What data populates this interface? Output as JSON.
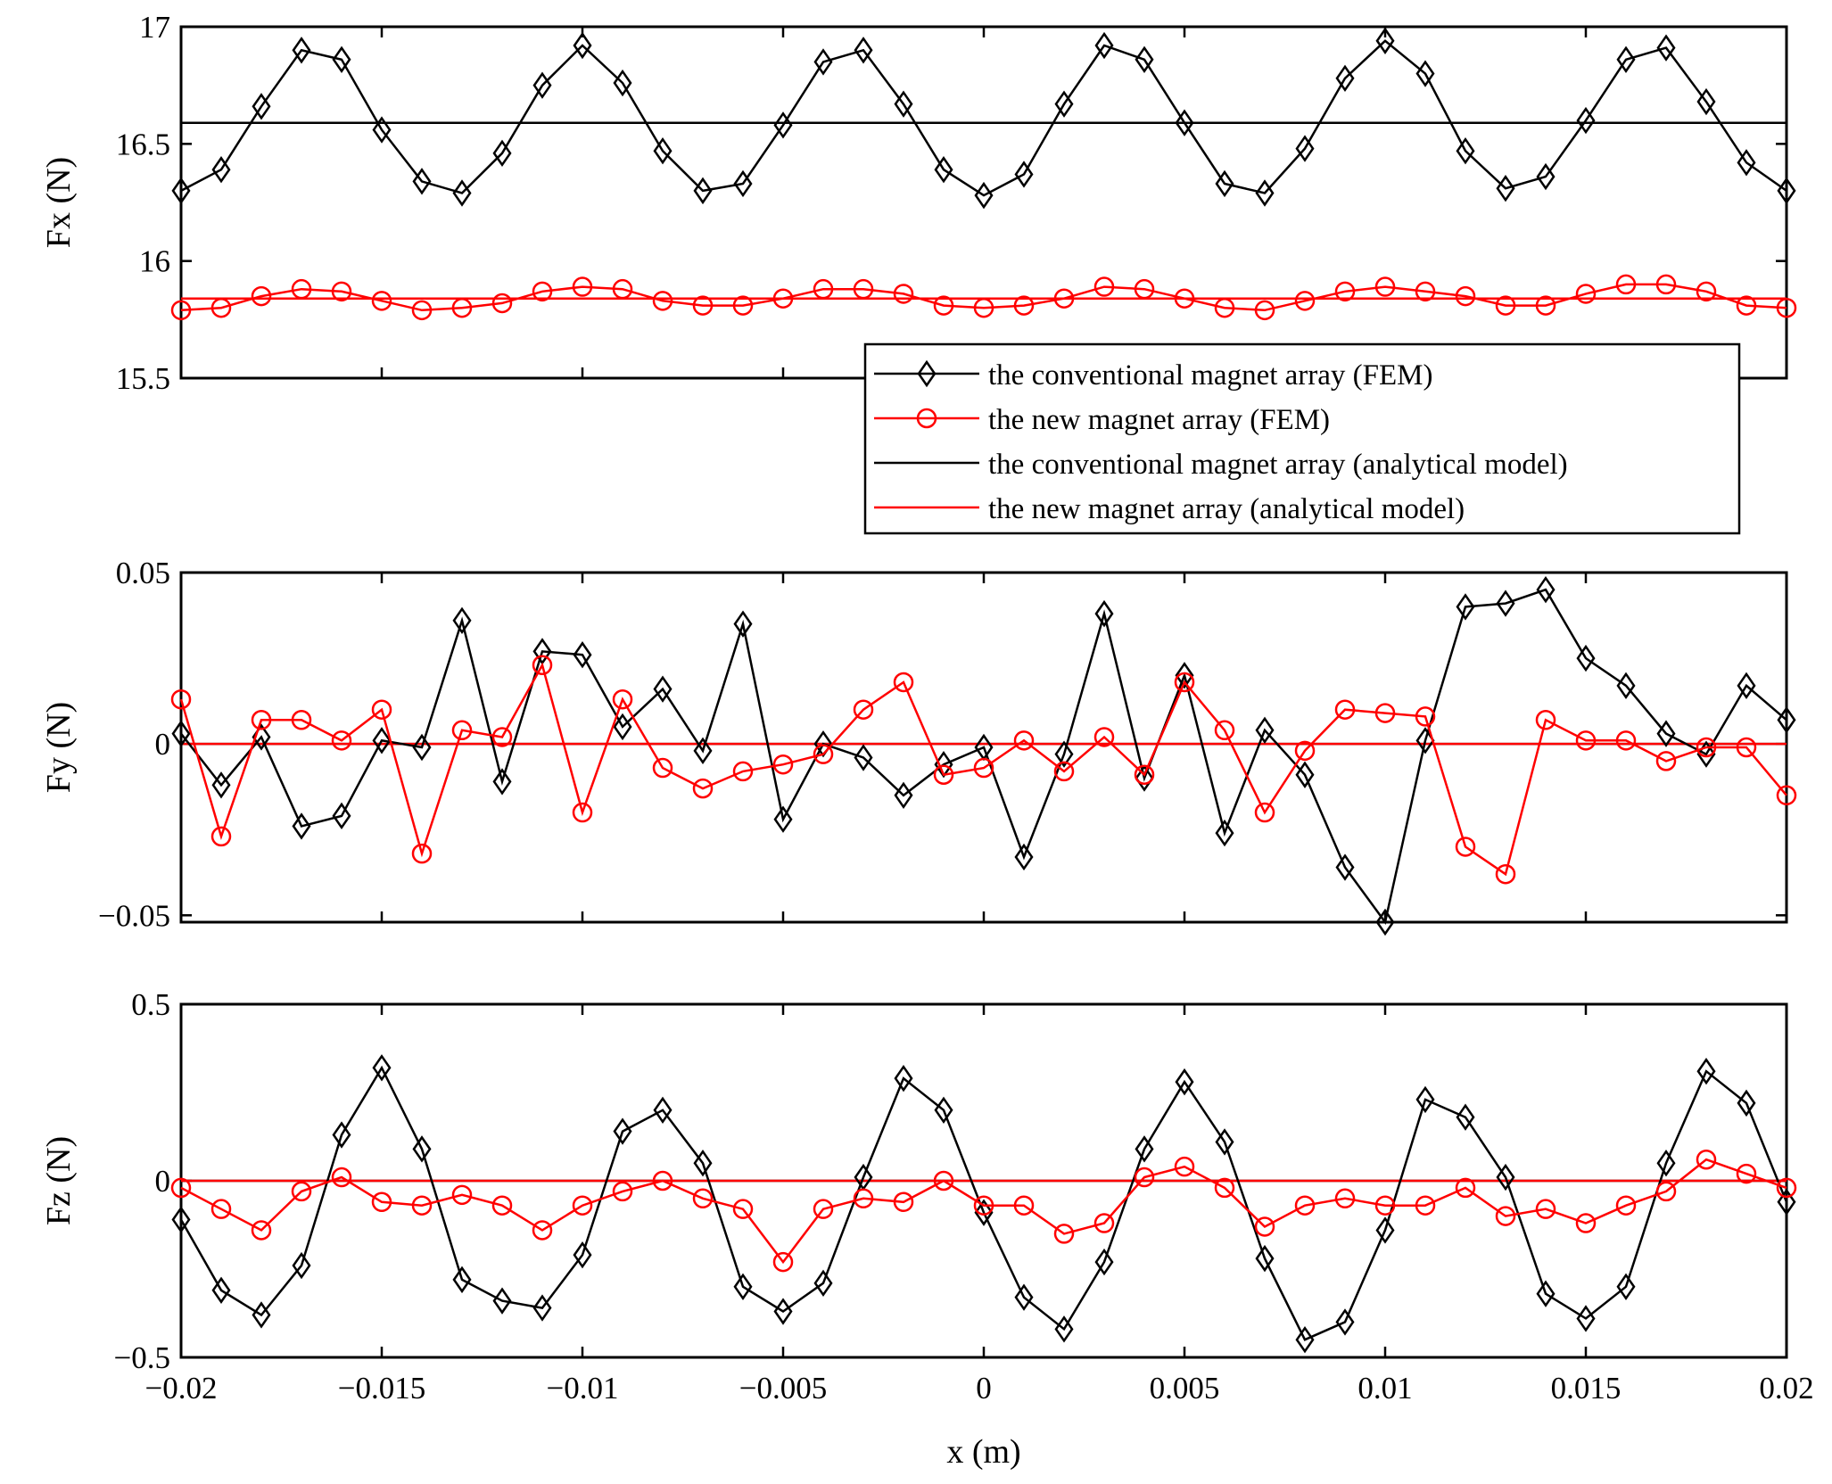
{
  "chart_data": [
    {
      "type": "line",
      "id": "fx",
      "ylabel": "Fx (N)",
      "xlabel": "",
      "xlim": [
        -0.02,
        0.02
      ],
      "ylim": [
        15.5,
        17
      ],
      "yticks": [
        15.5,
        16,
        16.5,
        17
      ],
      "ytick_labels": [
        "15.5",
        "16",
        "16.5",
        "17"
      ],
      "x": [
        -0.02,
        -0.019,
        -0.018,
        -0.017,
        -0.016,
        -0.015,
        -0.014,
        -0.013,
        -0.012,
        -0.011,
        -0.01,
        -0.009,
        -0.008,
        -0.007,
        -0.006,
        -0.005,
        -0.004,
        -0.003,
        -0.002,
        -0.001,
        0,
        0.001,
        0.002,
        0.003,
        0.004,
        0.005,
        0.006,
        0.007,
        0.008,
        0.009,
        0.01,
        0.011,
        0.012,
        0.013,
        0.014,
        0.015,
        0.016,
        0.017,
        0.018,
        0.019,
        0.02
      ],
      "series": [
        {
          "name": "the conventional magnet array (FEM)",
          "kind": "markers-diamond",
          "color": "#000000",
          "values": [
            16.3,
            16.39,
            16.66,
            16.9,
            16.86,
            16.56,
            16.34,
            16.29,
            16.46,
            16.75,
            16.92,
            16.76,
            16.47,
            16.3,
            16.33,
            16.58,
            16.85,
            16.9,
            16.67,
            16.39,
            16.28,
            16.37,
            16.67,
            16.92,
            16.86,
            16.59,
            16.33,
            16.29,
            16.48,
            16.78,
            16.94,
            16.8,
            16.47,
            16.31,
            16.36,
            16.6,
            16.86,
            16.91,
            16.68,
            16.42,
            16.3
          ]
        },
        {
          "name": "the new magnet array (FEM)",
          "kind": "markers-circle",
          "color": "#ff0000",
          "values": [
            15.79,
            15.8,
            15.85,
            15.88,
            15.87,
            15.83,
            15.79,
            15.8,
            15.82,
            15.87,
            15.89,
            15.88,
            15.83,
            15.81,
            15.81,
            15.84,
            15.88,
            15.88,
            15.86,
            15.81,
            15.8,
            15.81,
            15.84,
            15.89,
            15.88,
            15.84,
            15.8,
            15.79,
            15.83,
            15.87,
            15.89,
            15.87,
            15.85,
            15.81,
            15.81,
            15.86,
            15.9,
            15.9,
            15.87,
            15.81,
            15.8
          ]
        },
        {
          "name": "the conventional magnet array (analytical model)",
          "kind": "hline",
          "color": "#000000",
          "value": 16.59
        },
        {
          "name": "the new magnet array (analytical model)",
          "kind": "hline",
          "color": "#ff0000",
          "value": 15.84
        }
      ]
    },
    {
      "type": "line",
      "id": "fy",
      "ylabel": "Fy (N)",
      "xlabel": "",
      "xlim": [
        -0.02,
        0.02
      ],
      "ylim": [
        -0.052,
        0.05
      ],
      "yticks": [
        -0.05,
        0,
        0.05
      ],
      "ytick_labels": [
        "−0.05",
        "0",
        "0.05"
      ],
      "x": [
        -0.02,
        -0.019,
        -0.018,
        -0.017,
        -0.016,
        -0.015,
        -0.014,
        -0.013,
        -0.012,
        -0.011,
        -0.01,
        -0.009,
        -0.008,
        -0.007,
        -0.006,
        -0.005,
        -0.004,
        -0.003,
        -0.002,
        -0.001,
        0,
        0.001,
        0.002,
        0.003,
        0.004,
        0.005,
        0.006,
        0.007,
        0.008,
        0.009,
        0.01,
        0.011,
        0.012,
        0.013,
        0.014,
        0.015,
        0.016,
        0.017,
        0.018,
        0.019,
        0.02
      ],
      "series": [
        {
          "name": "the conventional magnet array (FEM)",
          "kind": "markers-diamond",
          "color": "#000000",
          "values": [
            0.003,
            -0.012,
            0.002,
            -0.024,
            -0.021,
            0.001,
            -0.001,
            0.036,
            -0.011,
            0.027,
            0.026,
            0.005,
            0.016,
            -0.002,
            0.035,
            -0.022,
            0.0,
            -0.004,
            -0.015,
            -0.006,
            -0.001,
            -0.033,
            -0.003,
            0.038,
            -0.01,
            0.02,
            -0.026,
            0.004,
            -0.009,
            -0.036,
            -0.052,
            0.001,
            0.04,
            0.041,
            0.045,
            0.025,
            0.017,
            0.003,
            -0.003,
            0.017,
            0.007
          ]
        },
        {
          "name": "the new magnet array (FEM)",
          "kind": "markers-circle",
          "color": "#ff0000",
          "values": [
            0.013,
            -0.027,
            0.007,
            0.007,
            0.001,
            0.01,
            -0.032,
            0.004,
            0.002,
            0.023,
            -0.02,
            0.013,
            -0.007,
            -0.013,
            -0.008,
            -0.006,
            -0.003,
            0.01,
            0.018,
            -0.009,
            -0.007,
            0.001,
            -0.008,
            0.002,
            -0.009,
            0.018,
            0.004,
            -0.02,
            -0.002,
            0.01,
            0.009,
            0.008,
            -0.03,
            -0.038,
            0.007,
            0.001,
            0.001,
            -0.005,
            -0.001,
            -0.001,
            -0.015
          ]
        },
        {
          "name": "the conventional magnet array (analytical model)",
          "kind": "hline",
          "color": "#000000",
          "value": 0
        },
        {
          "name": "the new magnet array (analytical model)",
          "kind": "hline",
          "color": "#ff0000",
          "value": 0
        }
      ]
    },
    {
      "type": "line",
      "id": "fz",
      "ylabel": "Fz (N)",
      "xlabel": "x (m)",
      "xlim": [
        -0.02,
        0.02
      ],
      "ylim": [
        -0.5,
        0.5
      ],
      "yticks": [
        -0.5,
        0,
        0.5
      ],
      "ytick_labels": [
        "−0.5",
        "0",
        "0.5"
      ],
      "xticks": [
        -0.02,
        -0.015,
        -0.01,
        -0.005,
        0,
        0.005,
        0.01,
        0.015,
        0.02
      ],
      "xtick_labels": [
        "−0.02",
        "−0.015",
        "−0.01",
        "−0.005",
        "0",
        "0.005",
        "0.01",
        "0.015",
        "0.02"
      ],
      "x": [
        -0.02,
        -0.019,
        -0.018,
        -0.017,
        -0.016,
        -0.015,
        -0.014,
        -0.013,
        -0.012,
        -0.011,
        -0.01,
        -0.009,
        -0.008,
        -0.007,
        -0.006,
        -0.005,
        -0.004,
        -0.003,
        -0.002,
        -0.001,
        0,
        0.001,
        0.002,
        0.003,
        0.004,
        0.005,
        0.006,
        0.007,
        0.008,
        0.009,
        0.01,
        0.011,
        0.012,
        0.013,
        0.014,
        0.015,
        0.016,
        0.017,
        0.018,
        0.019,
        0.02
      ],
      "series": [
        {
          "name": "the conventional magnet array (FEM)",
          "kind": "markers-diamond",
          "color": "#000000",
          "values": [
            -0.11,
            -0.31,
            -0.38,
            -0.24,
            0.13,
            0.32,
            0.09,
            -0.28,
            -0.34,
            -0.36,
            -0.21,
            0.14,
            0.2,
            0.05,
            -0.3,
            -0.37,
            -0.29,
            0.01,
            0.29,
            0.2,
            -0.09,
            -0.33,
            -0.42,
            -0.23,
            0.09,
            0.28,
            0.11,
            -0.22,
            -0.45,
            -0.4,
            -0.14,
            0.23,
            0.18,
            0.01,
            -0.32,
            -0.39,
            -0.3,
            0.05,
            0.31,
            0.22,
            -0.06
          ]
        },
        {
          "name": "the new magnet array (FEM)",
          "kind": "markers-circle",
          "color": "#ff0000",
          "values": [
            -0.02,
            -0.08,
            -0.14,
            -0.03,
            0.01,
            -0.06,
            -0.07,
            -0.04,
            -0.07,
            -0.14,
            -0.07,
            -0.03,
            0.0,
            -0.05,
            -0.08,
            -0.23,
            -0.08,
            -0.05,
            -0.06,
            0.0,
            -0.07,
            -0.07,
            -0.15,
            -0.12,
            0.01,
            0.04,
            -0.02,
            -0.13,
            -0.07,
            -0.05,
            -0.07,
            -0.07,
            -0.02,
            -0.1,
            -0.08,
            -0.12,
            -0.07,
            -0.03,
            0.06,
            0.02,
            -0.02
          ]
        },
        {
          "name": "the conventional magnet array (analytical model)",
          "kind": "hline",
          "color": "#000000",
          "value": 0
        },
        {
          "name": "the new magnet array (analytical model)",
          "kind": "hline",
          "color": "#ff0000",
          "value": 0
        }
      ]
    }
  ],
  "legend": {
    "placement": "below-top-panel-right",
    "entries": [
      {
        "label": "the conventional magnet array (FEM)",
        "marker": "diamond",
        "color": "#000000"
      },
      {
        "label": "the new magnet array (FEM)",
        "marker": "circle",
        "color": "#ff0000"
      },
      {
        "label": "the conventional magnet array (analytical model)",
        "marker": "none",
        "color": "#000000"
      },
      {
        "label": "the new magnet array (analytical model)",
        "marker": "none",
        "color": "#ff0000"
      }
    ]
  }
}
